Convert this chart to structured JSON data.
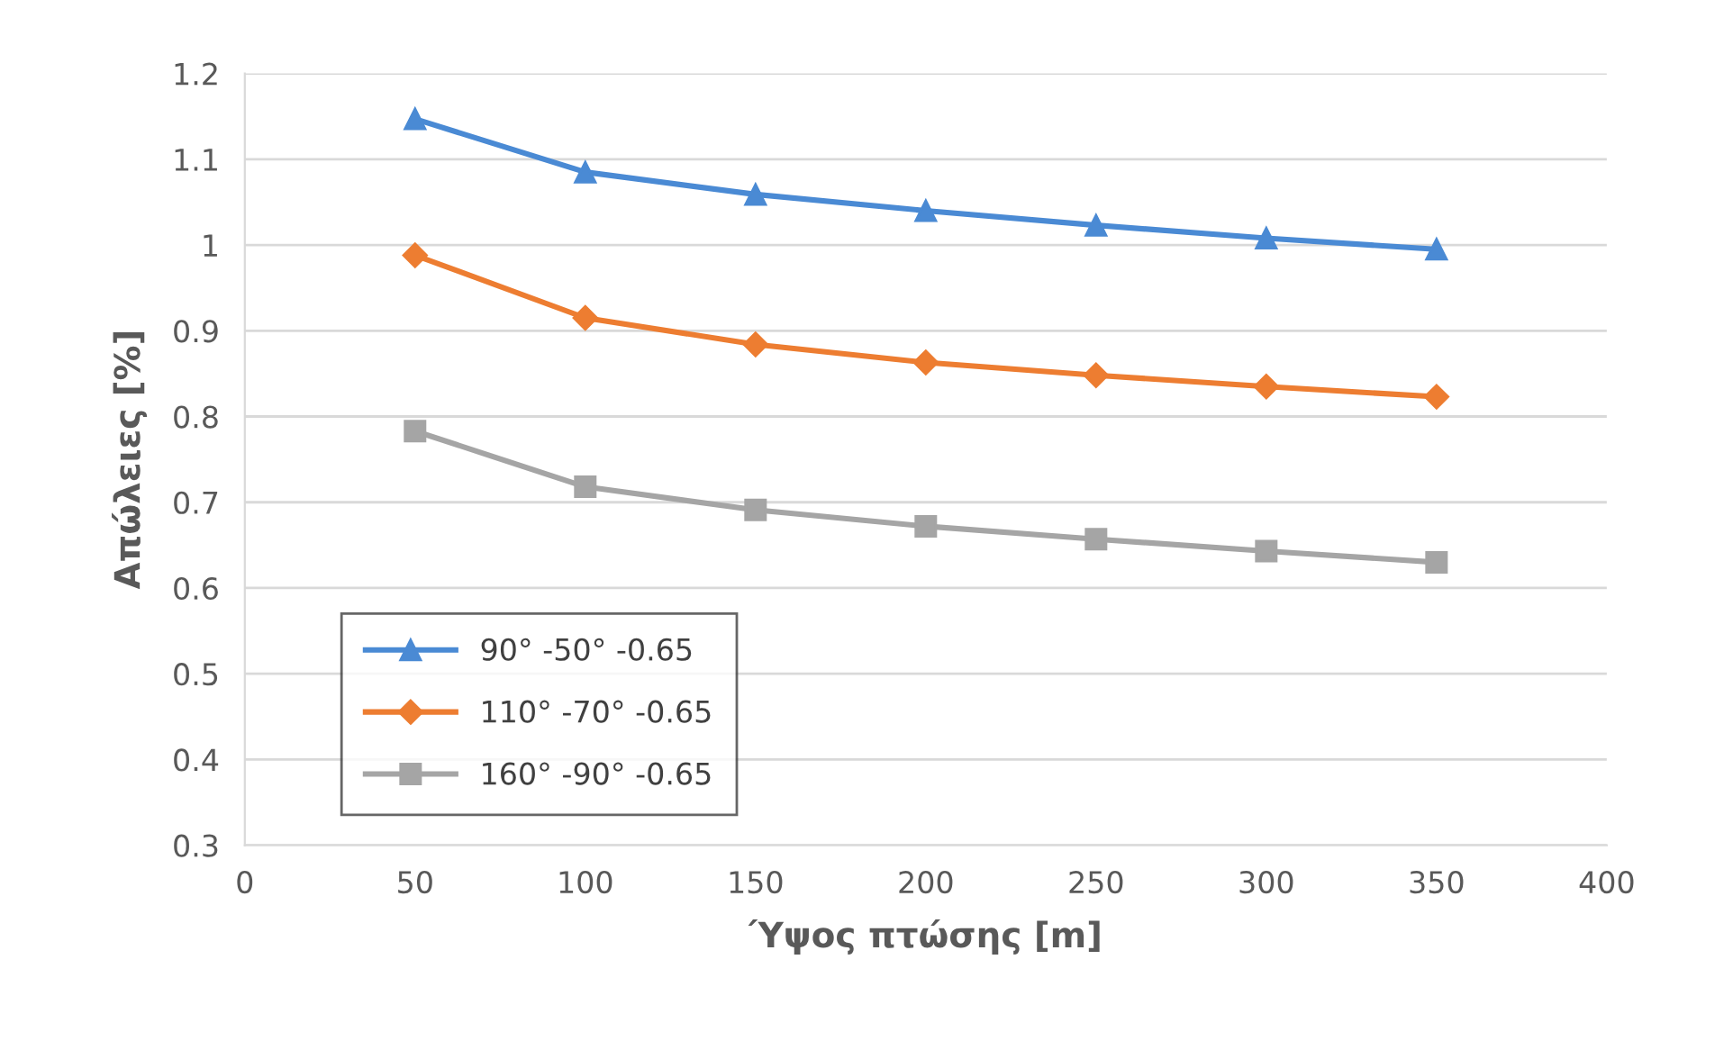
{
  "chart_data": {
    "type": "line",
    "xlabel": "Ύψος πτώσης [m]",
    "ylabel": "Απώλειες [%]",
    "x": [
      50,
      100,
      150,
      200,
      250,
      300,
      350
    ],
    "series": [
      {
        "name": "90° -50° -0.65",
        "color": "#4a8ad4",
        "marker": "triangle",
        "values": [
          1.147,
          1.085,
          1.059,
          1.04,
          1.023,
          1.008,
          0.995
        ]
      },
      {
        "name": "110° -70° -0.65",
        "color": "#ed7d31",
        "marker": "diamond",
        "values": [
          0.988,
          0.915,
          0.884,
          0.863,
          0.848,
          0.835,
          0.823
        ]
      },
      {
        "name": "160° -90° -0.65",
        "color": "#a5a5a5",
        "marker": "square",
        "values": [
          0.783,
          0.718,
          0.691,
          0.672,
          0.657,
          0.643,
          0.63
        ]
      }
    ],
    "xlim": [
      0,
      400
    ],
    "xticks": [
      0,
      50,
      100,
      150,
      200,
      250,
      300,
      350,
      400
    ],
    "ylim": [
      0.3,
      1.2
    ],
    "yticks": [
      0.3,
      0.4,
      0.5,
      0.6,
      0.7,
      0.8,
      0.9,
      1,
      1.1,
      1.2
    ],
    "grid": "y",
    "legend": "bottom left"
  }
}
